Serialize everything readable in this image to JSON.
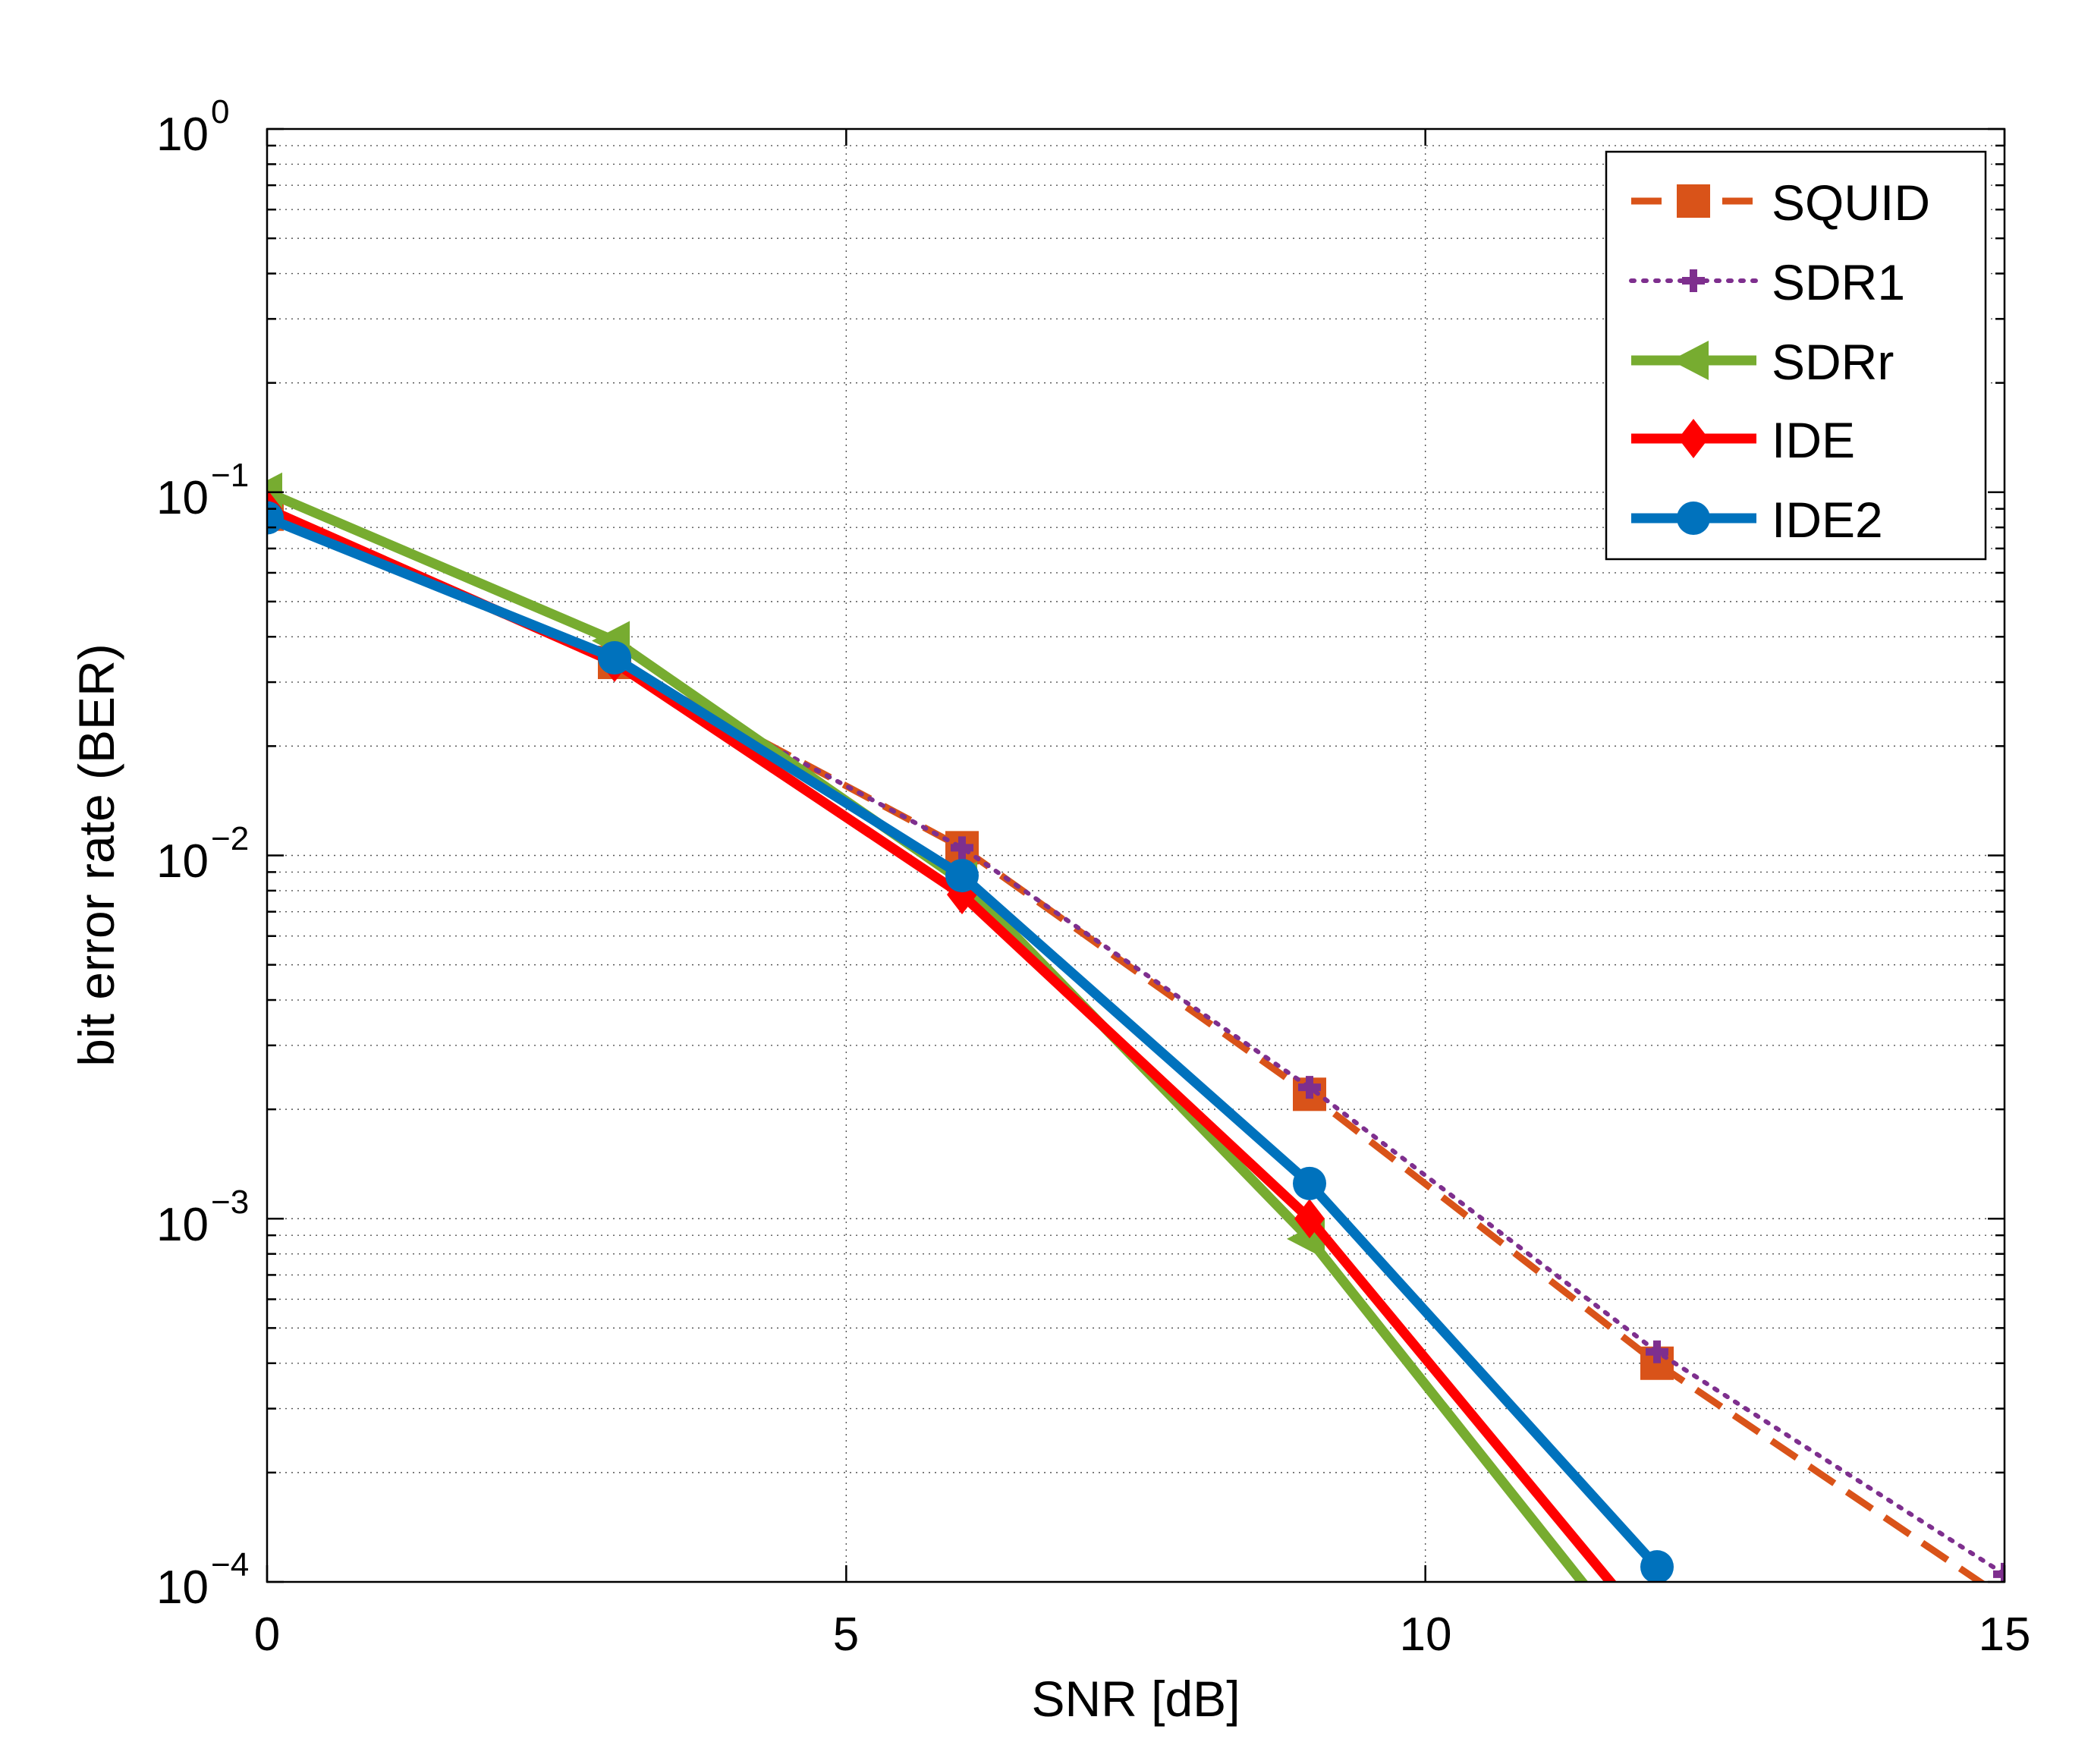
{
  "chart_data": {
    "type": "line",
    "xlabel": "SNR [dB]",
    "ylabel": "bit error rate (BER)",
    "xlim": [
      0,
      15
    ],
    "ylim": [
      0.0001,
      1
    ],
    "yscale": "log",
    "grid": true,
    "legend_position": "top-right",
    "x_ticks": [
      "0",
      "5",
      "10",
      "15"
    ],
    "y_ticks": [
      {
        "base": "10",
        "exp": "0"
      },
      {
        "base": "10",
        "exp": "−1"
      },
      {
        "base": "10",
        "exp": "−2"
      },
      {
        "base": "10",
        "exp": "−3"
      },
      {
        "base": "10",
        "exp": "−4"
      }
    ],
    "series": [
      {
        "name": "SQUID",
        "color": "#D95319",
        "style": "dashed",
        "marker": "square",
        "x": [
          0,
          3,
          6,
          9,
          12,
          15
        ],
        "y": [
          0.087,
          0.034,
          0.0105,
          0.0022,
          0.0004,
          9e-05
        ]
      },
      {
        "name": "SDR1",
        "color": "#7E2F8E",
        "style": "dotted",
        "marker": "plus",
        "x": [
          0,
          3,
          6,
          9,
          12,
          15
        ],
        "y": [
          0.088,
          0.034,
          0.0105,
          0.0023,
          0.00043,
          0.000105
        ]
      },
      {
        "name": "SDRr",
        "color": "#77AC30",
        "style": "solid",
        "marker": "triangle-left",
        "x": [
          0,
          3,
          6,
          9,
          12
        ],
        "y": [
          0.1,
          0.039,
          0.0085,
          0.00088,
          5.5e-05
        ]
      },
      {
        "name": "IDE",
        "color": "#FF0000",
        "style": "solid",
        "marker": "diamond",
        "x": [
          0,
          3,
          6,
          9,
          12
        ],
        "y": [
          0.09,
          0.034,
          0.0078,
          0.001,
          7e-05
        ]
      },
      {
        "name": "IDE2",
        "color": "#0072BD",
        "style": "solid",
        "marker": "circle",
        "x": [
          0,
          3,
          6,
          9,
          12
        ],
        "y": [
          0.085,
          0.035,
          0.0088,
          0.00125,
          0.00011
        ]
      }
    ]
  }
}
